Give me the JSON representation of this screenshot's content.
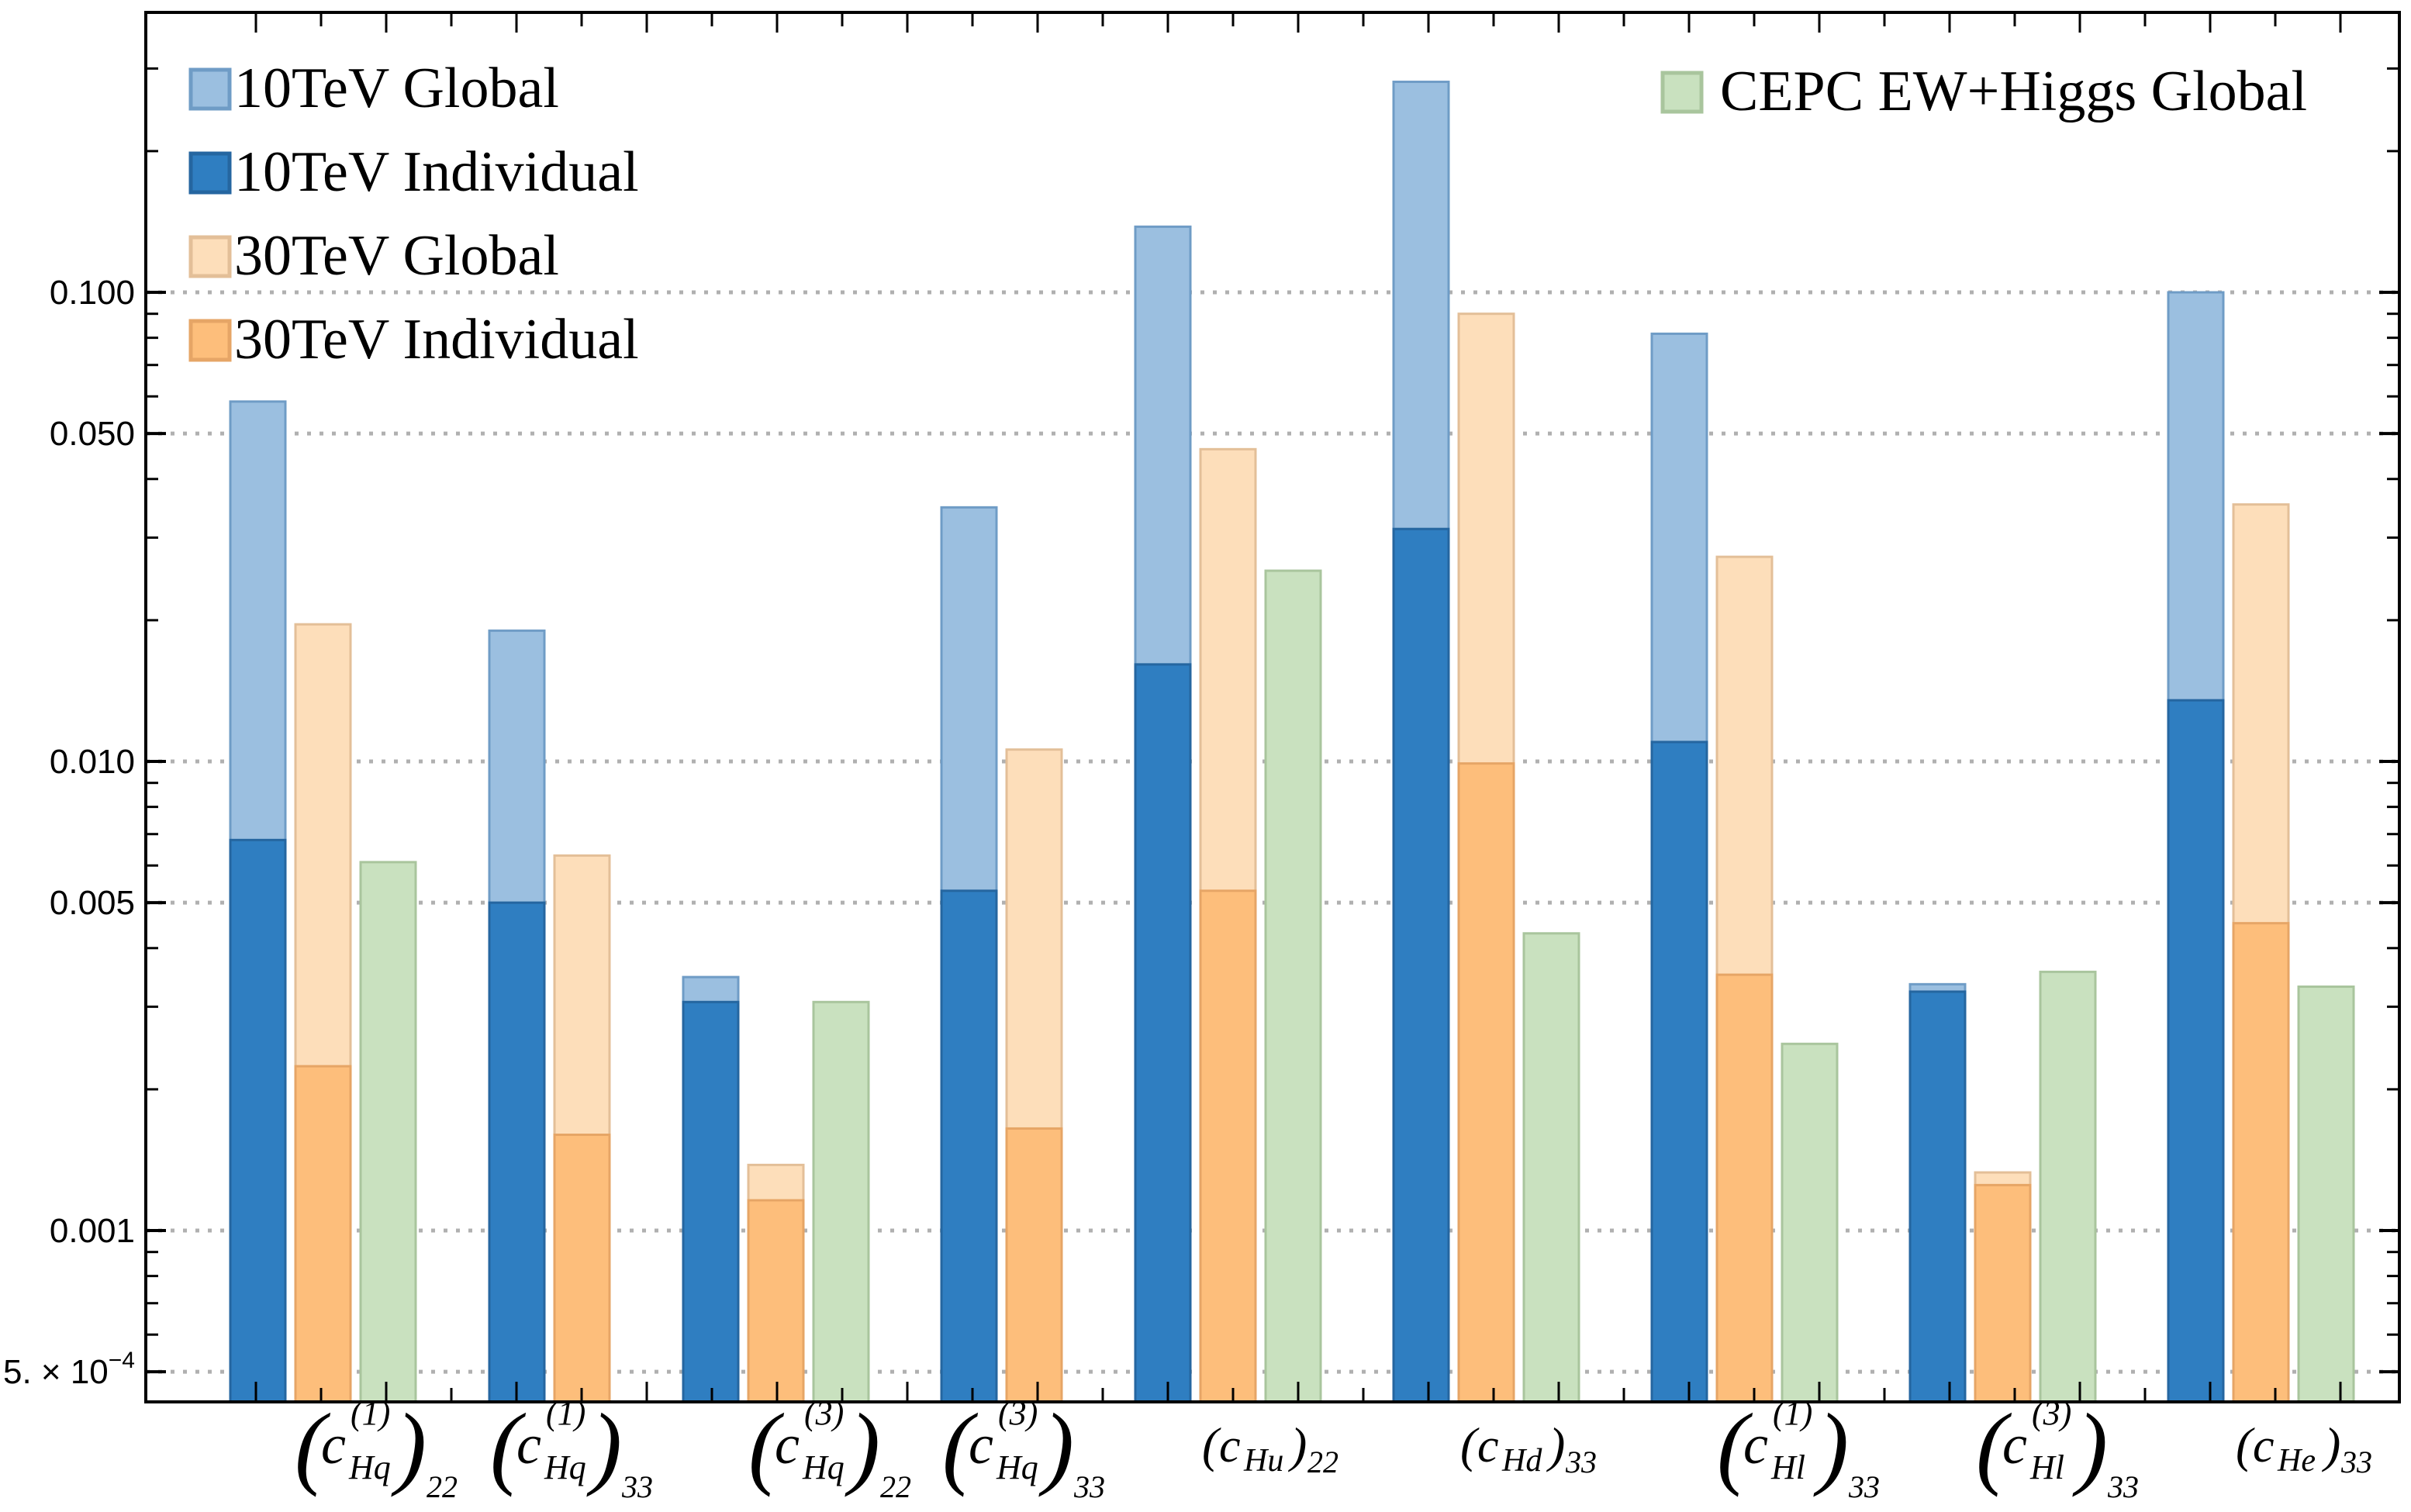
{
  "chart_data": {
    "type": "bar",
    "title": "",
    "xlabel": "",
    "ylabel": "",
    "yscale": "log",
    "ylim": [
      0.00042,
      0.42
    ],
    "grid": "horizontal dotted at labeled ticks",
    "yticks": [
      {
        "value": 0.1,
        "label": "0.100"
      },
      {
        "value": 0.05,
        "label": "0.050"
      },
      {
        "value": 0.01,
        "label": "0.010"
      },
      {
        "value": 0.005,
        "label": "0.005"
      },
      {
        "value": 0.001,
        "label": "0.001"
      },
      {
        "value": 0.0005,
        "label": "5. × 10",
        "exponent": "−4"
      }
    ],
    "categories": [
      {
        "base": "c",
        "sub": "Hq",
        "sup": "(1)",
        "flavor": "22",
        "paren_tall": true
      },
      {
        "base": "c",
        "sub": "Hq",
        "sup": "(1)",
        "flavor": "33",
        "paren_tall": true
      },
      {
        "base": "c",
        "sub": "Hq",
        "sup": "(3)",
        "flavor": "22",
        "paren_tall": true
      },
      {
        "base": "c",
        "sub": "Hq",
        "sup": "(3)",
        "flavor": "33",
        "paren_tall": true
      },
      {
        "base": "c",
        "sub": "Hu",
        "sup": "",
        "flavor": "22",
        "paren_tall": false
      },
      {
        "base": "c",
        "sub": "Hd",
        "sup": "",
        "flavor": "33",
        "paren_tall": false
      },
      {
        "base": "c",
        "sub": "Hl",
        "sup": "(1)",
        "flavor": "33",
        "paren_tall": true
      },
      {
        "base": "c",
        "sub": "Hl",
        "sup": "(3)",
        "flavor": "33",
        "paren_tall": true
      },
      {
        "base": "c",
        "sub": "He",
        "sup": "",
        "flavor": "33",
        "paren_tall": false
      }
    ],
    "series": [
      {
        "name": "10TeV Global",
        "color": "#9bbfe0",
        "stroke": "#6f9cc6",
        "values": [
          0.0585,
          0.019,
          0.00347,
          0.0348,
          0.138,
          0.281,
          0.0816,
          0.00335,
          0.1
        ]
      },
      {
        "name": "10TeV Individual",
        "color": "#2f7ec1",
        "stroke": "#2566a0",
        "values": [
          0.0068,
          0.005,
          0.00307,
          0.0053,
          0.0161,
          0.0313,
          0.011,
          0.00323,
          0.0135
        ]
      },
      {
        "name": "30TeV Global",
        "color": "#fddeba",
        "stroke": "#e3bf98",
        "values": [
          0.0196,
          0.0063,
          0.00138,
          0.0106,
          0.0463,
          0.09,
          0.0273,
          0.00133,
          0.0353
        ]
      },
      {
        "name": "30TeV Individual",
        "color": "#fdbe7b",
        "stroke": "#e6a566",
        "values": [
          0.00224,
          0.0016,
          0.00116,
          0.00165,
          0.0053,
          0.0099,
          0.00351,
          0.00125,
          0.00452
        ]
      },
      {
        "name": "CEPC EW+Higgs Global",
        "color": "#c9e1bf",
        "stroke": "#a9c59d",
        "values": [
          0.0061,
          null,
          0.00307,
          null,
          0.0255,
          0.0043,
          0.0025,
          0.00356,
          0.00331
        ]
      }
    ],
    "legend": {
      "left": [
        "10TeV Global",
        "10TeV Individual",
        "30TeV Global",
        "30TeV Individual"
      ],
      "right": [
        "CEPC EW+Higgs Global"
      ],
      "placement_left": "top-left",
      "placement_right": "top-right"
    }
  }
}
